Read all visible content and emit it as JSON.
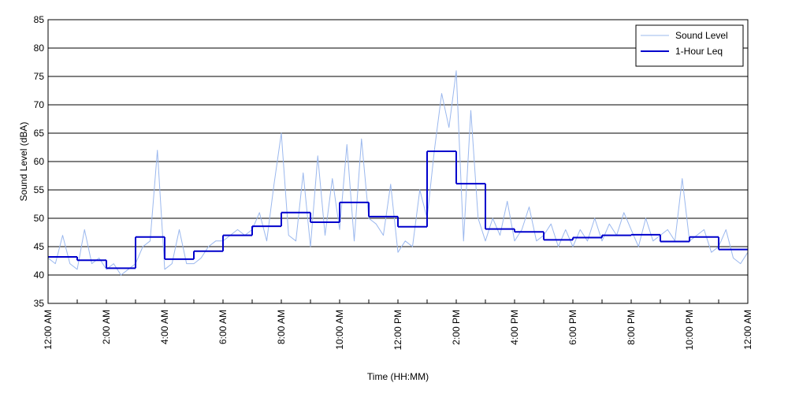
{
  "chart_data": {
    "type": "line",
    "ylabel": "Sound Level (dBA)",
    "xlabel": "Time (HH:MM)",
    "xlim": [
      0,
      24
    ],
    "ylim": [
      35,
      85
    ],
    "yticks": [
      35,
      40,
      45,
      50,
      55,
      60,
      65,
      70,
      75,
      80,
      85
    ],
    "xticks": [
      {
        "value": 0,
        "label": "12:00 AM"
      },
      {
        "value": 2,
        "label": "2:00 AM"
      },
      {
        "value": 4,
        "label": "4:00 AM"
      },
      {
        "value": 6,
        "label": "6:00 AM"
      },
      {
        "value": 8,
        "label": "8:00 AM"
      },
      {
        "value": 10,
        "label": "10:00 AM"
      },
      {
        "value": 12,
        "label": "12:00 PM"
      },
      {
        "value": 14,
        "label": "2:00 PM"
      },
      {
        "value": 16,
        "label": "4:00 PM"
      },
      {
        "value": 18,
        "label": "6:00 PM"
      },
      {
        "value": 20,
        "label": "8:00 PM"
      },
      {
        "value": 22,
        "label": "10:00 PM"
      },
      {
        "value": 24,
        "label": "12:00 AM"
      }
    ],
    "xminorticks": [
      1,
      3,
      5,
      7,
      9,
      11,
      13,
      15,
      17,
      19,
      21,
      23
    ],
    "grid": true,
    "legend": "upper right",
    "series": [
      {
        "name": "Sound Level",
        "color": "#9bb8ee",
        "width": 1,
        "x": [
          0,
          0.25,
          0.5,
          0.75,
          1,
          1.25,
          1.5,
          1.75,
          2,
          2.25,
          2.5,
          2.75,
          3,
          3.25,
          3.5,
          3.75,
          4,
          4.25,
          4.5,
          4.75,
          5,
          5.25,
          5.5,
          5.75,
          6,
          6.25,
          6.5,
          6.75,
          7,
          7.25,
          7.5,
          7.75,
          8,
          8.25,
          8.5,
          8.75,
          9,
          9.25,
          9.5,
          9.75,
          10,
          10.25,
          10.5,
          10.75,
          11,
          11.25,
          11.5,
          11.75,
          12,
          12.25,
          12.5,
          12.75,
          13,
          13.25,
          13.5,
          13.75,
          14,
          14.25,
          14.5,
          14.75,
          15,
          15.25,
          15.5,
          15.75,
          16,
          16.25,
          16.5,
          16.75,
          17,
          17.25,
          17.5,
          17.75,
          18,
          18.25,
          18.5,
          18.75,
          19,
          19.25,
          19.5,
          19.75,
          20,
          20.25,
          20.5,
          20.75,
          21,
          21.25,
          21.5,
          21.75,
          22,
          22.25,
          22.5,
          22.75,
          23,
          23.25,
          23.5,
          23.75,
          24
        ],
        "values": [
          43,
          42,
          47,
          42,
          41,
          48,
          42,
          43,
          41,
          42,
          40,
          41,
          42,
          45,
          46,
          62,
          41,
          42,
          48,
          42,
          42,
          43,
          45,
          46,
          46,
          47,
          48,
          47,
          48,
          51,
          46,
          56,
          65,
          47,
          46,
          58,
          45,
          61,
          47,
          57,
          48,
          63,
          46,
          64,
          50,
          49,
          47,
          56,
          44,
          46,
          45,
          55,
          50,
          62,
          72,
          66,
          76,
          46,
          69,
          50,
          46,
          50,
          47,
          53,
          46,
          48,
          52,
          46,
          47,
          49,
          45,
          48,
          45,
          48,
          46,
          50,
          46,
          49,
          47,
          51,
          48,
          45,
          50,
          46,
          47,
          48,
          46,
          57,
          46,
          47,
          48,
          44,
          45,
          48,
          43,
          42,
          44
        ]
      },
      {
        "name": "1-Hour Leq",
        "color": "#0000cc",
        "width": 2,
        "step": "post",
        "x": [
          0,
          1,
          2,
          3,
          4,
          5,
          6,
          7,
          8,
          9,
          10,
          11,
          12,
          13,
          14,
          15,
          16,
          17,
          18,
          19,
          20,
          21,
          22,
          23
        ],
        "values": [
          43.2,
          42.6,
          41.2,
          46.7,
          42.8,
          44.2,
          47.0,
          48.6,
          51.0,
          49.3,
          52.8,
          50.3,
          48.5,
          61.8,
          56.1,
          48.1,
          47.6,
          46.2,
          46.6,
          47.0,
          47.1,
          45.9,
          46.7,
          44.5
        ]
      }
    ]
  }
}
